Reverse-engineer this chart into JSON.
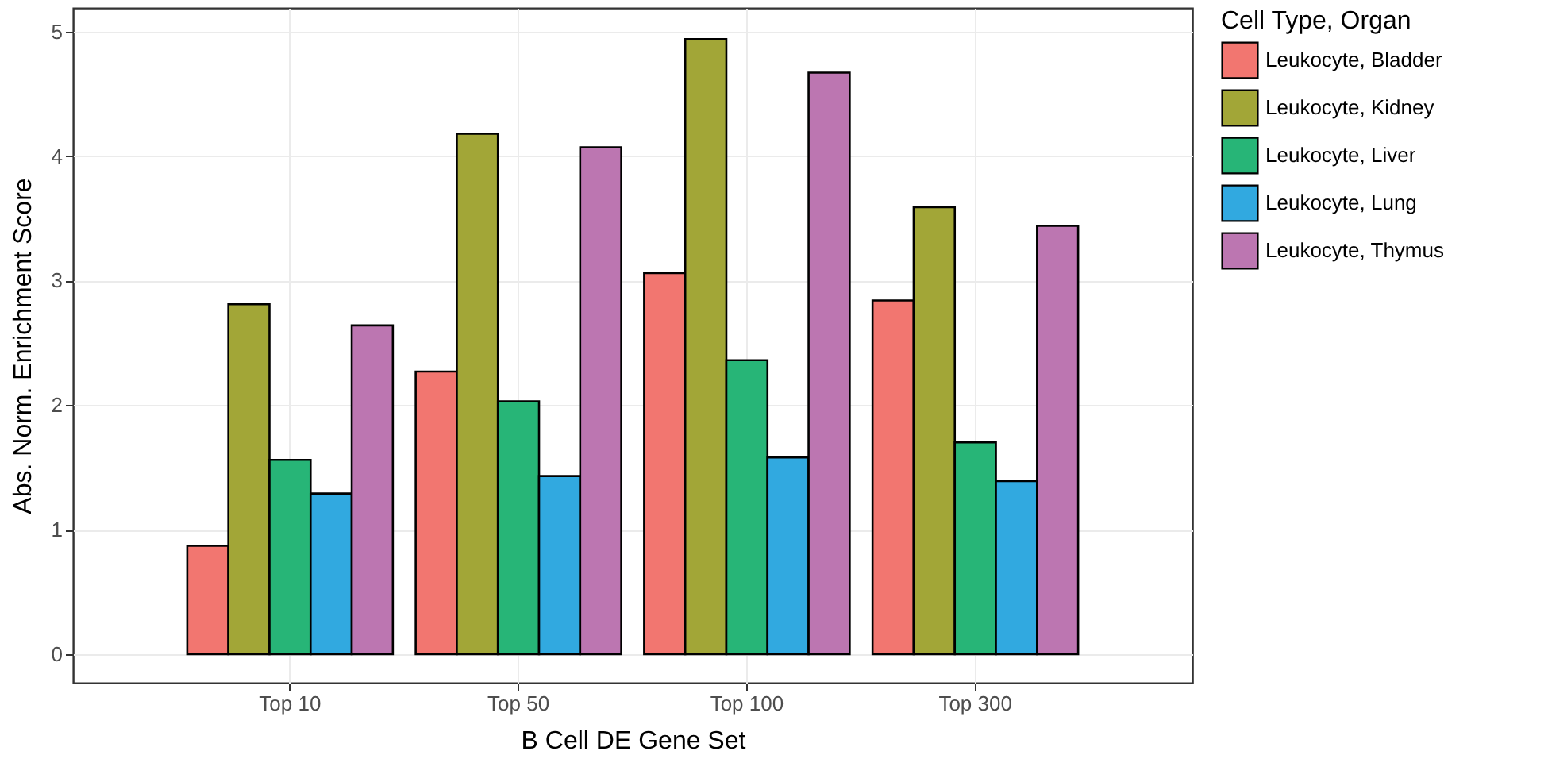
{
  "chart_data": {
    "type": "bar",
    "xlabel": "B Cell DE Gene Set",
    "ylabel": "Abs. Norm. Enrichment Score",
    "legend_title": "Cell Type, Organ",
    "categories": [
      "Top 10",
      "Top 50",
      "Top 100",
      "Top 300"
    ],
    "series": [
      {
        "name": "Leukocyte, Bladder",
        "color": "#f27670",
        "values": [
          0.87,
          2.27,
          3.06,
          2.84
        ]
      },
      {
        "name": "Leukocyte, Kidney",
        "color": "#a2a637",
        "values": [
          2.81,
          4.18,
          4.94,
          3.59
        ]
      },
      {
        "name": "Leukocyte, Liver",
        "color": "#27b577",
        "values": [
          1.56,
          2.03,
          2.36,
          1.7
        ]
      },
      {
        "name": "Leukocyte, Lung",
        "color": "#31a9e0",
        "values": [
          1.29,
          1.43,
          1.58,
          1.39
        ]
      },
      {
        "name": "Leukocyte, Thymus",
        "color": "#bc76b1",
        "values": [
          2.64,
          4.07,
          4.67,
          3.44
        ]
      }
    ],
    "ylim": [
      -0.23,
      5.19
    ],
    "yticks": [
      0,
      1,
      2,
      3,
      4,
      5
    ],
    "grid": true,
    "legend": "right"
  }
}
